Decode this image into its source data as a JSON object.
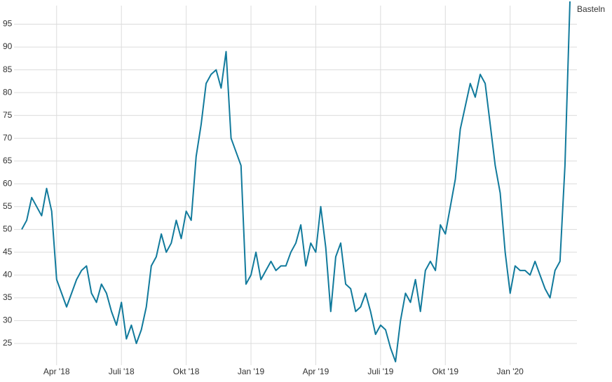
{
  "chart_data": {
    "type": "line",
    "categories": [
      null,
      null,
      null,
      null,
      null,
      null,
      null,
      "Apr '18",
      null,
      null,
      null,
      null,
      null,
      null,
      null,
      null,
      null,
      null,
      null,
      null,
      "Juli '18",
      null,
      null,
      null,
      null,
      null,
      null,
      null,
      null,
      null,
      null,
      null,
      null,
      "Okt '18",
      null,
      null,
      null,
      null,
      null,
      null,
      null,
      null,
      null,
      null,
      null,
      null,
      "Jan '19",
      null,
      null,
      null,
      null,
      null,
      null,
      null,
      null,
      null,
      null,
      null,
      null,
      "Apr '19",
      null,
      null,
      null,
      null,
      null,
      null,
      null,
      null,
      null,
      null,
      null,
      null,
      "Juli '19",
      null,
      null,
      null,
      null,
      null,
      null,
      null,
      null,
      null,
      null,
      null,
      null,
      "Okt '19",
      null,
      null,
      null,
      null,
      null,
      null,
      null,
      null,
      null,
      null,
      null,
      null,
      "Jan '20",
      null,
      null,
      null,
      null,
      null,
      null,
      null,
      null,
      null,
      null,
      null,
      null
    ],
    "series": [
      {
        "name": "Basteln",
        "color": "#117a9c",
        "values": [
          50,
          52,
          57,
          55,
          53,
          59,
          54,
          39,
          36,
          33,
          36,
          39,
          41,
          42,
          36,
          34,
          38,
          36,
          32,
          29,
          34,
          26,
          29,
          25,
          28,
          33,
          42,
          44,
          49,
          45,
          47,
          52,
          48,
          54,
          52,
          66,
          73,
          82,
          84,
          85,
          81,
          89,
          70,
          67,
          64,
          38,
          40,
          45,
          39,
          41,
          43,
          41,
          42,
          42,
          45,
          47,
          51,
          42,
          47,
          45,
          55,
          46,
          32,
          44,
          47,
          38,
          37,
          32,
          33,
          36,
          32,
          27,
          29,
          28,
          24,
          21,
          30,
          36,
          34,
          39,
          32,
          41,
          43,
          41,
          51,
          49,
          55,
          61,
          72,
          77,
          82,
          79,
          84,
          82,
          73,
          64,
          58,
          45,
          36,
          42,
          41,
          41,
          40,
          43,
          40,
          37,
          35,
          41,
          43,
          64,
          100
        ]
      }
    ],
    "ylim": [
      21,
      100
    ],
    "yticks": [
      25,
      30,
      35,
      40,
      45,
      50,
      55,
      60,
      65,
      70,
      75,
      80,
      85,
      90,
      95
    ],
    "grid": true
  }
}
